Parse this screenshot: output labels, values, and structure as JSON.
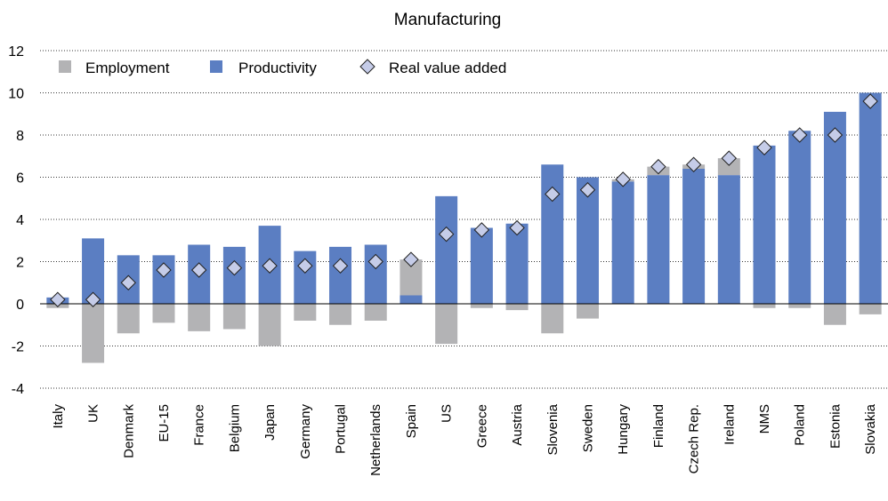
{
  "chart_data": {
    "type": "bar",
    "title": "Manufacturing",
    "xlabel": "",
    "ylabel": "",
    "ylim": [
      -4,
      12
    ],
    "yticks": [
      -4,
      -2,
      0,
      2,
      4,
      6,
      8,
      10,
      12
    ],
    "grid": true,
    "legend_position": "top-left",
    "categories": [
      "Italy",
      "UK",
      "Denmark",
      "EU-15",
      "France",
      "Belgium",
      "Japan",
      "Germany",
      "Portugal",
      "Netherlands",
      "Spain",
      "US",
      "Greece",
      "Austria",
      "Slovenia",
      "Sweden",
      "Hungary",
      "Finland",
      "Czech Rep.",
      "Ireland",
      "NMS",
      "Poland",
      "Estonia",
      "Slovakia"
    ],
    "series": [
      {
        "name": "Employment",
        "kind": "bar",
        "color": "#b3b3b5",
        "values": [
          -0.2,
          -2.8,
          -1.4,
          -0.9,
          -1.3,
          -1.2,
          -2.0,
          -0.8,
          -1.0,
          -0.8,
          1.7,
          -1.9,
          -0.2,
          -0.3,
          -1.4,
          -0.7,
          0.1,
          0.4,
          0.2,
          0.8,
          -0.2,
          -0.2,
          -1.0,
          -0.5
        ]
      },
      {
        "name": "Productivity",
        "kind": "bar",
        "color": "#5b7ec2",
        "values": [
          0.3,
          3.1,
          2.3,
          2.3,
          2.8,
          2.7,
          3.7,
          2.5,
          2.7,
          2.8,
          0.4,
          5.1,
          3.6,
          3.8,
          6.6,
          6.0,
          5.8,
          6.1,
          6.4,
          6.1,
          7.5,
          8.2,
          9.1,
          10.0
        ]
      },
      {
        "name": "Real value added",
        "kind": "marker",
        "color": "#c5cce8",
        "values": [
          0.2,
          0.2,
          1.0,
          1.6,
          1.6,
          1.7,
          1.8,
          1.8,
          1.8,
          2.0,
          2.1,
          3.3,
          3.5,
          3.6,
          5.2,
          5.4,
          5.9,
          6.5,
          6.6,
          6.9,
          7.4,
          8.0,
          8.0,
          9.6
        ]
      }
    ]
  }
}
